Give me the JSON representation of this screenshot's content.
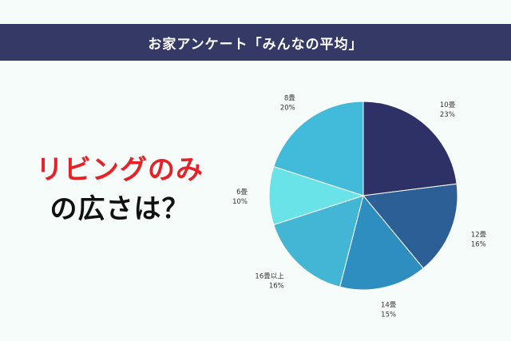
{
  "header": {
    "title": "お家アンケート「みんなの平均」"
  },
  "headline": {
    "line1": "リビングのみ",
    "line2": "の広さは？"
  },
  "colors": {
    "header_bg": "#343966",
    "headline_red": "#e82127",
    "background": "#f6fcfa"
  },
  "chart_data": {
    "type": "pie",
    "title": "",
    "start": "12 o'clock",
    "direction": "clockwise",
    "slices": [
      {
        "label": "10畳",
        "percent_text": "23%",
        "value": 23,
        "color": "#2e3166"
      },
      {
        "label": "12畳",
        "percent_text": "16%",
        "value": 16,
        "color": "#2d5f97"
      },
      {
        "label": "14畳",
        "percent_text": "15%",
        "value": 15,
        "color": "#2e8ebf"
      },
      {
        "label": "16畳以上",
        "percent_text": "16%",
        "value": 16,
        "color": "#43b6d6"
      },
      {
        "label": "6畳",
        "percent_text": "10%",
        "value": 10,
        "color": "#69e3e8"
      },
      {
        "label": "8畳",
        "percent_text": "20%",
        "value": 20,
        "color": "#42bad9"
      }
    ]
  }
}
